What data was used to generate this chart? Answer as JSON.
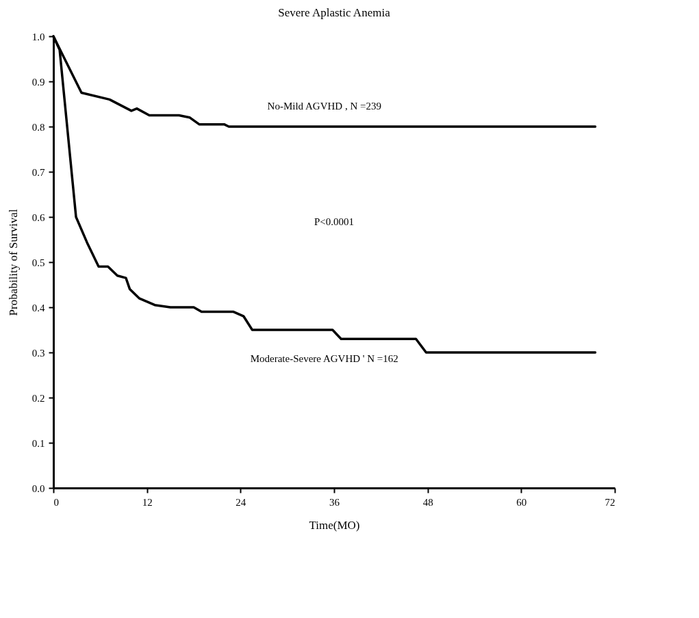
{
  "chart_data": {
    "type": "line",
    "title": "Severe Aplastic Anemia",
    "xlabel": "Time(MO)",
    "ylabel": "Probability of Survival",
    "xlim": [
      0,
      72
    ],
    "xticks": [
      0,
      12,
      24,
      36,
      48,
      60,
      72
    ],
    "ylim": [
      0,
      1
    ],
    "yticks": [
      {
        "value": 0,
        "label": "0.0"
      },
      0.1,
      0.2,
      0.3,
      0.4,
      0.5,
      0.6,
      0.7,
      0.8,
      0.9,
      {
        "value": 1,
        "label": "1.0"
      }
    ],
    "grid": false,
    "line_style": "solid",
    "annotations": [
      "P<0.0001"
    ],
    "series": [
      {
        "name": "No-Mild AGVHD , N =239",
        "color": "#000000",
        "x": [
          0,
          3.6,
          7.2,
          10,
          10.7,
          12.3,
          16.1,
          17.5,
          18.7,
          21.9,
          22.5,
          69.5
        ],
        "values": [
          1.0,
          0.875,
          0.86,
          0.835,
          0.84,
          0.825,
          0.825,
          0.82,
          0.805,
          0.805,
          0.8,
          0.8
        ]
      },
      {
        "name": "Moderate-Severe AGVHD ' N =162",
        "color": "#000000",
        "x": [
          0,
          0.8,
          2.9,
          4.4,
          5.8,
          7.0,
          8.2,
          9.3,
          9.8,
          11,
          13,
          15,
          18,
          19,
          23.1,
          24.4,
          25.5,
          35.8,
          36.9,
          46.5,
          47.8,
          69.5
        ],
        "values": [
          1.0,
          0.97,
          0.6,
          0.54,
          0.49,
          0.49,
          0.47,
          0.465,
          0.44,
          0.42,
          0.405,
          0.4,
          0.4,
          0.39,
          0.39,
          0.38,
          0.35,
          0.35,
          0.33,
          0.33,
          0.3,
          0.3
        ]
      }
    ]
  }
}
